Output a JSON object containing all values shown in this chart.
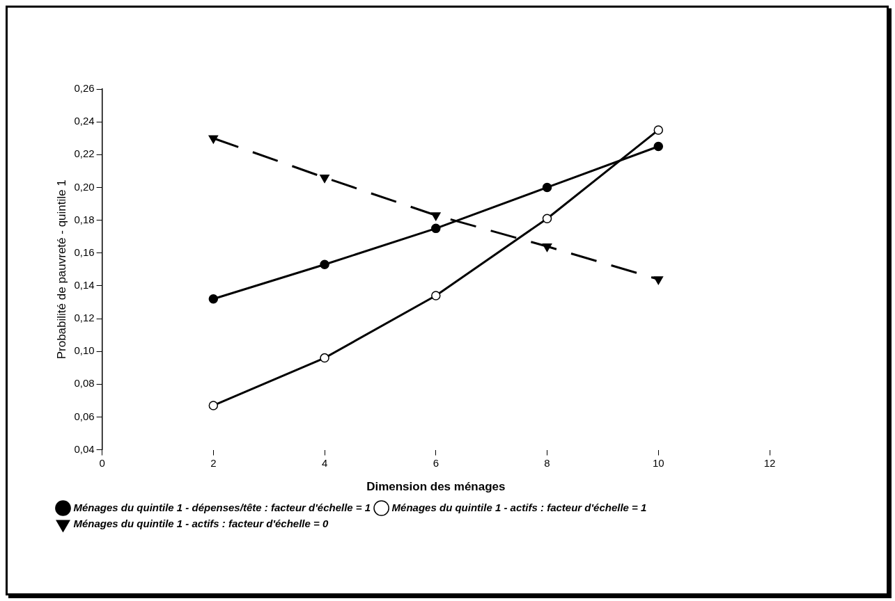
{
  "chart_data": {
    "type": "line",
    "xlabel": "Dimension des ménages",
    "ylabel": "Probabilité de pauvreté - quintile 1",
    "xlim": [
      0,
      12
    ],
    "xticks": [
      0,
      2,
      4,
      6,
      8,
      10,
      12
    ],
    "ylim": [
      0.04,
      0.26
    ],
    "yticks": [
      {
        "value": 0.04,
        "label": "0,04"
      },
      {
        "value": 0.06,
        "label": "0,06"
      },
      {
        "value": 0.08,
        "label": "0,08"
      },
      {
        "value": 0.1,
        "label": "0,10"
      },
      {
        "value": 0.12,
        "label": "0,12"
      },
      {
        "value": 0.14,
        "label": "0,14"
      },
      {
        "value": 0.16,
        "label": "0,16"
      },
      {
        "value": 0.18,
        "label": "0,18"
      },
      {
        "value": 0.2,
        "label": "0,20"
      },
      {
        "value": 0.22,
        "label": "0,22"
      },
      {
        "value": 0.24,
        "label": "0,24"
      },
      {
        "value": 0.26,
        "label": "0,26"
      }
    ],
    "x": [
      2,
      4,
      6,
      8,
      10
    ],
    "grid": false,
    "legend": "bottom",
    "series": [
      {
        "name": "Ménages du quintile 1 - dépenses/tête : facteur d'échelle = 1",
        "color": "#000000",
        "marker": "circle",
        "line_style": "solid",
        "values": [
          0.132,
          0.153,
          0.175,
          0.2,
          0.225
        ]
      },
      {
        "name": "Ménages du quintile 1 - actifs : facteur d'échelle = 1",
        "color": "#000000",
        "marker": "circle",
        "colors": [
          "#ffffff",
          "#ffffff",
          "#ffffff",
          "#ffffff",
          "#ffffff"
        ],
        "line_style": "solid",
        "values": [
          0.067,
          0.096,
          0.134,
          0.181,
          0.235
        ]
      },
      {
        "name": "Ménages du quintile 1 - actifs : facteur d'échelle = 0",
        "color": "#000000",
        "marker": "triangle",
        "line_style": "dashed",
        "values": [
          0.23,
          0.206,
          0.183,
          0.164,
          0.144
        ]
      }
    ]
  }
}
